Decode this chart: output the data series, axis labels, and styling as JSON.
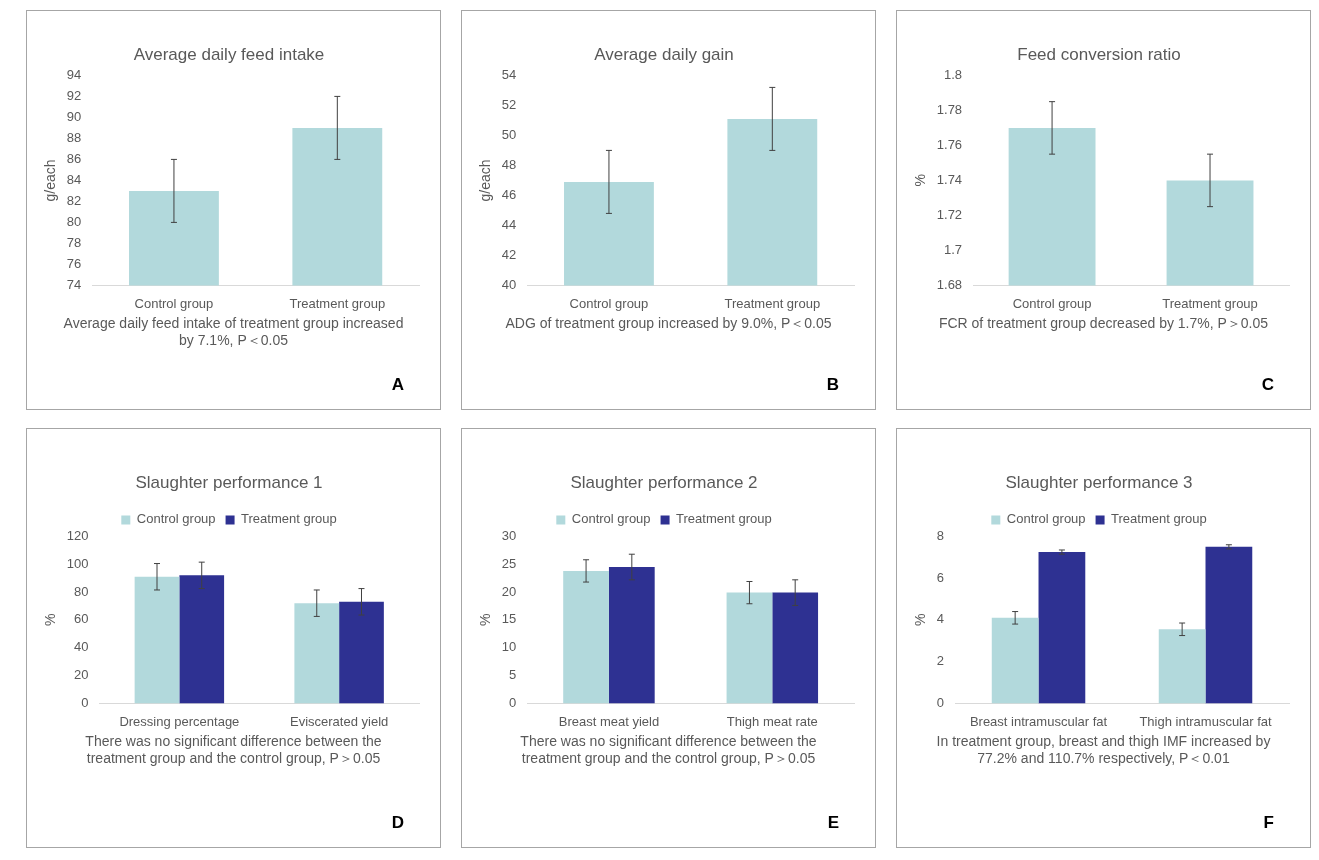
{
  "chart_data": [
    {
      "type": "bar",
      "title": "Average daily feed intake",
      "ylabel": "g/each",
      "categories": [
        "Control group",
        "Treatment group"
      ],
      "values": [
        83,
        89
      ],
      "errors": [
        3,
        3
      ],
      "color": "#b2d9dc",
      "ylim": [
        74,
        94
      ],
      "yticks": [
        74,
        76,
        78,
        80,
        82,
        84,
        86,
        88,
        90,
        92,
        94
      ],
      "annotations": [
        "Average daily feed intake of treatment group increased by 7.1%, P＜0.05",
        "A"
      ]
    },
    {
      "type": "bar",
      "title": "Average daily gain",
      "ylabel": "g/each",
      "categories": [
        "Control group",
        "Treatment group"
      ],
      "values": [
        46.9,
        51.1
      ],
      "errors": [
        [
          44.8,
          49
        ],
        [
          49,
          53.2
        ]
      ],
      "color": "#b2d9dc",
      "ylim": [
        40,
        54
      ],
      "yticks": [
        40,
        42,
        44,
        46,
        48,
        50,
        52,
        54
      ],
      "annotations": [
        "ADG of treatment group increased by 9.0%, P＜0.05",
        "B"
      ]
    },
    {
      "type": "bar",
      "title": "Feed conversion ratio",
      "ylabel": "%",
      "categories": [
        "Control group",
        "Treatment group"
      ],
      "values": [
        1.77,
        1.74
      ],
      "errors": [
        0.015,
        0.015
      ],
      "color": "#b2d9dc",
      "ylim": [
        1.68,
        1.8
      ],
      "yticks": [
        1.68,
        1.7,
        1.72,
        1.74,
        1.76,
        1.78,
        1.8
      ],
      "annotations": [
        "FCR of treatment group decreased by 1.7%, P＞0.05",
        "C"
      ]
    },
    {
      "type": "bar",
      "title": "Slaughter performance 1",
      "ylabel": "%",
      "categories": [
        "Dressing percentage",
        "Eviscerated yield"
      ],
      "legend": "top",
      "series": [
        {
          "name": "Control group",
          "color": "#b2d9dc",
          "values": [
            91,
            72
          ],
          "errors": [
            9.5,
            9.5
          ]
        },
        {
          "name": "Treatment group",
          "color": "#2e3192",
          "values": [
            92,
            73
          ],
          "errors": [
            9.5,
            9.5
          ]
        }
      ],
      "ylim": [
        0,
        120
      ],
      "yticks": [
        0,
        20,
        40,
        60,
        80,
        100,
        120
      ],
      "annotations": [
        "There was no significant difference between the treatment group and the control group, P＞0.05",
        "D"
      ]
    },
    {
      "type": "bar",
      "title": "Slaughter performance 2",
      "ylabel": "%",
      "categories": [
        "Breast meat yield",
        "Thigh meat rate"
      ],
      "legend": "top",
      "series": [
        {
          "name": "Control group",
          "color": "#b2d9dc",
          "values": [
            23.8,
            19.9
          ],
          "errors": [
            2,
            2
          ]
        },
        {
          "name": "Treatment group",
          "color": "#2e3192",
          "values": [
            24.5,
            19.9
          ],
          "errors": [
            2.3,
            2.3
          ]
        }
      ],
      "ylim": [
        0,
        30
      ],
      "yticks": [
        0,
        5,
        10,
        15,
        20,
        25,
        30
      ],
      "annotations": [
        "There was no significant difference between the treatment group and the control group, P＞0.05",
        "E"
      ]
    },
    {
      "type": "bar",
      "title": "Slaughter performance 3",
      "ylabel": "%",
      "categories": [
        "Breast intramuscular fat",
        "Thigh intramuscular fat"
      ],
      "legend": "top",
      "series": [
        {
          "name": "Control group",
          "color": "#b2d9dc",
          "values": [
            4.1,
            3.55
          ],
          "errors": [
            0.3,
            0.3
          ]
        },
        {
          "name": "Treatment group",
          "color": "#2e3192",
          "values": [
            7.25,
            7.5
          ],
          "errors": [
            0.1,
            0.1
          ]
        }
      ],
      "ylim": [
        0,
        8
      ],
      "yticks": [
        0,
        2,
        4,
        6,
        8
      ],
      "annotations": [
        "In treatment group, breast and thigh IMF increased by 77.2% and 110.7% respectively, P＜0.01",
        "F"
      ]
    }
  ]
}
